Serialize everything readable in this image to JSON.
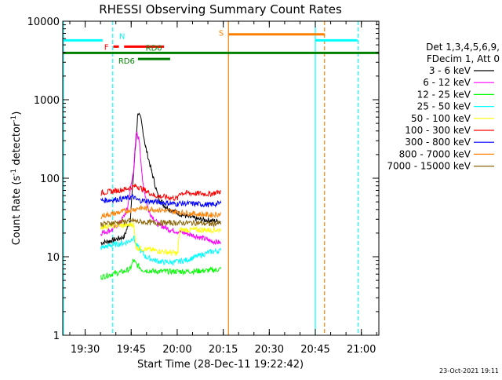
{
  "chart_data": {
    "type": "line",
    "title": "RHESSI Observing Summary Count Rates",
    "xlabel": "Start Time (28-Dec-11 19:22:42)",
    "ylabel_main": "Count Rate (s",
    "ylabel_sup1": "-1",
    "ylabel_mid": " detector",
    "ylabel_sup2": "-1",
    "ylabel_end": ")",
    "x_unit": "minutes after 19:22:42",
    "xlim": [
      0,
      103
    ],
    "ylim": [
      1,
      10000
    ],
    "yscale": "log",
    "xticks": [
      {
        "t": 7.3,
        "label": "19:30"
      },
      {
        "t": 22.3,
        "label": "19:45"
      },
      {
        "t": 37.3,
        "label": "20:00"
      },
      {
        "t": 52.3,
        "label": "20:15"
      },
      {
        "t": 67.3,
        "label": "20:30"
      },
      {
        "t": 82.3,
        "label": "20:45"
      },
      {
        "t": 97.3,
        "label": "21:00"
      }
    ],
    "yticks": [
      {
        "v": 1,
        "label": "1"
      },
      {
        "v": 10,
        "label": "10"
      },
      {
        "v": 100,
        "label": "100"
      },
      {
        "v": 1000,
        "label": "1000"
      },
      {
        "v": 10000,
        "label": "10000"
      }
    ],
    "legend_header": [
      "Det 1,3,4,5,6,9,",
      "FDecim 1, Att 0"
    ],
    "legend_placement": "right",
    "series": [
      {
        "name": "3 - 6 keV",
        "color": "#000000",
        "points": [
          [
            12.4,
            15
          ],
          [
            16,
            16
          ],
          [
            20,
            18
          ],
          [
            22,
            30
          ],
          [
            23.5,
            200
          ],
          [
            24.5,
            700
          ],
          [
            25.5,
            550
          ],
          [
            27,
            250
          ],
          [
            29,
            120
          ],
          [
            31,
            60
          ],
          [
            33,
            45
          ],
          [
            36,
            38
          ],
          [
            40,
            33
          ],
          [
            44,
            30
          ],
          [
            48,
            29
          ],
          [
            51.5,
            28
          ]
        ]
      },
      {
        "name": "6 - 12 keV",
        "color": "#ff00ff",
        "points": [
          [
            12.4,
            20
          ],
          [
            16,
            22
          ],
          [
            19,
            28
          ],
          [
            21,
            40
          ],
          [
            23,
            120
          ],
          [
            24,
            380
          ],
          [
            25,
            300
          ],
          [
            26,
            90
          ],
          [
            28,
            38
          ],
          [
            31,
            26
          ],
          [
            35,
            22
          ],
          [
            40,
            20
          ],
          [
            44,
            18
          ],
          [
            48,
            16
          ],
          [
            51.5,
            15
          ]
        ]
      },
      {
        "name": "12 - 25 keV",
        "color": "#00ff00",
        "points": [
          [
            12.4,
            5.5
          ],
          [
            16,
            6
          ],
          [
            20,
            6.5
          ],
          [
            22,
            7
          ],
          [
            23,
            9
          ],
          [
            24,
            8
          ],
          [
            26,
            6.8
          ],
          [
            30,
            6.5
          ],
          [
            35,
            6.5
          ],
          [
            40,
            6.5
          ],
          [
            45,
            6.6
          ],
          [
            50,
            6.8
          ],
          [
            51.5,
            7
          ]
        ]
      },
      {
        "name": "25 - 50 keV",
        "color": "#00ffff",
        "points": [
          [
            12.4,
            13
          ],
          [
            16,
            14
          ],
          [
            20,
            15
          ],
          [
            22,
            16
          ],
          [
            23,
            18
          ],
          [
            24,
            14
          ],
          [
            27,
            10
          ],
          [
            30,
            9
          ],
          [
            33,
            8.5
          ],
          [
            36,
            8.5
          ],
          [
            40,
            9
          ],
          [
            45,
            10.5
          ],
          [
            48,
            11.5
          ],
          [
            51.5,
            12
          ]
        ]
      },
      {
        "name": "50 - 100 keV",
        "color": "#ffff00",
        "points": [
          [
            12.4,
            24
          ],
          [
            16,
            25
          ],
          [
            20,
            25
          ],
          [
            23,
            26
          ],
          [
            24,
            13
          ],
          [
            30,
            12
          ],
          [
            37.5,
            11
          ],
          [
            38,
            22
          ],
          [
            44,
            22
          ],
          [
            48,
            22
          ],
          [
            51.5,
            22
          ]
        ]
      },
      {
        "name": "100 - 300 keV",
        "color": "#ff0000",
        "points": [
          [
            12.4,
            65
          ],
          [
            16,
            68
          ],
          [
            20,
            72
          ],
          [
            23,
            78
          ],
          [
            24,
            80
          ],
          [
            30,
            60
          ],
          [
            37.5,
            55
          ],
          [
            38,
            65
          ],
          [
            44,
            64
          ],
          [
            48,
            63
          ],
          [
            51.5,
            68
          ]
        ]
      },
      {
        "name": "300 - 800 keV",
        "color": "#0000ff",
        "points": [
          [
            12.4,
            52
          ],
          [
            16,
            53
          ],
          [
            20,
            55
          ],
          [
            23,
            58
          ],
          [
            24,
            53
          ],
          [
            30,
            50
          ],
          [
            37.5,
            47
          ],
          [
            38,
            48
          ],
          [
            44,
            47
          ],
          [
            48,
            46
          ],
          [
            51.5,
            48
          ]
        ]
      },
      {
        "name": "800 - 7000 keV",
        "color": "#ff8000",
        "points": [
          [
            12.4,
            33
          ],
          [
            16,
            35
          ],
          [
            20,
            38
          ],
          [
            23,
            40
          ],
          [
            25,
            42
          ],
          [
            30,
            40
          ],
          [
            35,
            38
          ],
          [
            40,
            36
          ],
          [
            44,
            35
          ],
          [
            48,
            34
          ],
          [
            51.5,
            35
          ]
        ]
      },
      {
        "name": "7000 - 15000 keV",
        "color": "#8b6508",
        "points": [
          [
            12.4,
            26
          ],
          [
            16,
            27
          ],
          [
            20,
            28
          ],
          [
            23,
            29
          ],
          [
            24,
            28
          ],
          [
            30,
            27
          ],
          [
            37.5,
            27
          ],
          [
            38,
            27
          ],
          [
            44,
            27
          ],
          [
            48,
            26
          ],
          [
            51.5,
            27
          ]
        ]
      }
    ],
    "flag_bars": [
      {
        "label": "N",
        "color": "#00ffff",
        "y": 5700,
        "segments": [
          [
            0,
            13
          ],
          [
            82.3,
            96
          ]
        ]
      },
      {
        "label": "S",
        "color": "#ff8000",
        "y": 6800,
        "segments": [
          [
            54,
            85.3
          ]
        ]
      },
      {
        "label": "F",
        "color": "#ff0000",
        "y": 4750,
        "segments": [
          [
            16.5,
            18.3
          ],
          [
            20,
            33
          ]
        ]
      },
      {
        "label": "RD0",
        "color": "#008000",
        "y": 3950,
        "segments": [
          [
            0,
            103
          ]
        ]
      },
      {
        "label": "RD6",
        "color": "#008000",
        "y": 3300,
        "segments": [
          [
            24.5,
            35
          ]
        ]
      }
    ],
    "vertical_lines": [
      {
        "t": 0.2,
        "color": "#00ffff",
        "dashed": false
      },
      {
        "t": 16.3,
        "color": "#00ffff",
        "dashed": true
      },
      {
        "t": 54.0,
        "color": "#ff8000",
        "dashed": false
      },
      {
        "t": 82.3,
        "color": "#00ffff",
        "dashed": false
      },
      {
        "t": 85.3,
        "color": "#ff8000",
        "dashed": true
      },
      {
        "t": 96.2,
        "color": "#00ffff",
        "dashed": true
      }
    ],
    "footer_stamp": "23-Oct-2021 19:11"
  }
}
